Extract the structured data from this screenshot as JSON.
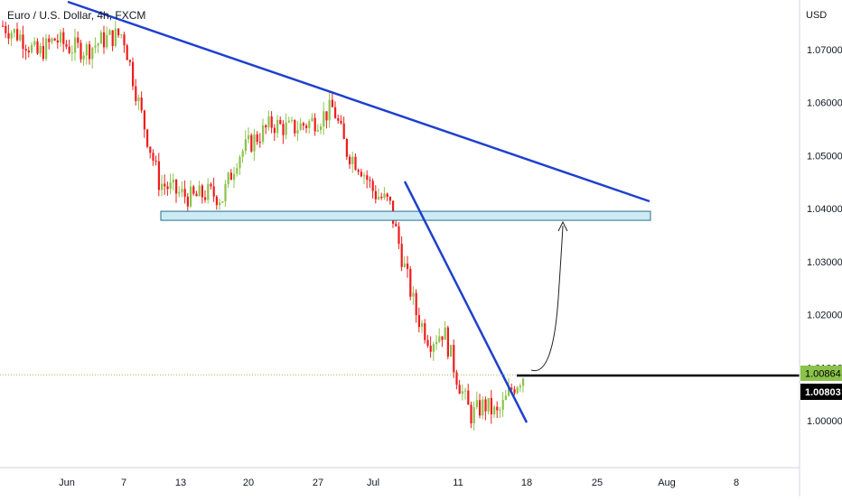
{
  "header": {
    "title": "Euro / U.S. Dollar, 4h, FXCM"
  },
  "price_axis": {
    "currency": "USD",
    "ticks": [
      "1.07000",
      "1.06000",
      "1.05000",
      "1.04000",
      "1.03000",
      "1.02000",
      "1.01000",
      "1.00000"
    ],
    "last_price_label": "1.00864",
    "crosshair_label": "1.00803"
  },
  "time_axis": {
    "ticks": [
      "Jun",
      "7",
      "13",
      "20",
      "27",
      "Jul",
      "11",
      "18",
      "25",
      "Aug",
      "8"
    ]
  },
  "colors": {
    "up_candle": "#8bc34a",
    "down_candle": "#ef1c1c",
    "trendline": "#1e40cf",
    "zone_fill": "#cdebf5",
    "zone_border": "#2a6f8c",
    "last_price_bg": "#8bc34a",
    "crosshair_bg": "#000000",
    "dotted_line": "#8bc34a"
  },
  "chart_data": {
    "type": "candlestick",
    "title": "Euro / U.S. Dollar, 4h, FXCM",
    "ylabel": "USD",
    "ylim": [
      0.9925,
      1.0795
    ],
    "x_ticks": [
      "Jun",
      "7",
      "13",
      "20",
      "27",
      "Jul",
      "11",
      "18",
      "25",
      "Aug",
      "8"
    ],
    "close_path": [
      [
        "May 30",
        1.0745
      ],
      [
        "Jun 1",
        1.0725
      ],
      [
        "Jun 2",
        1.069
      ],
      [
        "Jun 3",
        1.072
      ],
      [
        "Jun 6",
        1.0705
      ],
      [
        "Jun 7",
        1.07
      ],
      [
        "Jun 8",
        1.072
      ],
      [
        "Jun 9",
        1.073
      ],
      [
        "Jun 10",
        1.058
      ],
      [
        "Jun 13",
        1.045
      ],
      [
        "Jun 14",
        1.043
      ],
      [
        "Jun 15",
        1.042
      ],
      [
        "Jun 16",
        1.043
      ],
      [
        "Jun 17",
        1.042
      ],
      [
        "Jun 20",
        1.05
      ],
      [
        "Jun 21",
        1.053
      ],
      [
        "Jun 22",
        1.056
      ],
      [
        "Jun 23",
        1.055
      ],
      [
        "Jun 24",
        1.056
      ],
      [
        "Jun 27",
        1.057
      ],
      [
        "Jun 28",
        1.059
      ],
      [
        "Jun 29",
        1.051
      ],
      [
        "Jun 30",
        1.048
      ],
      [
        "Jul 1",
        1.043
      ],
      [
        "Jul 4",
        1.041
      ],
      [
        "Jul 5",
        1.03
      ],
      [
        "Jul 6",
        1.02
      ],
      [
        "Jul 7",
        1.015
      ],
      [
        "Jul 8",
        1.017
      ],
      [
        "Jul 11",
        1.008
      ],
      [
        "Jul 12",
        1.001
      ],
      [
        "Jul 13",
        1.003
      ],
      [
        "Jul 14",
        1.001
      ],
      [
        "Jul 15",
        1.006
      ],
      [
        "Jul 17",
        1.0086
      ]
    ],
    "last_price": 1.00864,
    "crosshair_price": 1.00803,
    "support_zone": [
      1.0378,
      1.0395
    ],
    "annotations": [
      "descending trendline",
      "steep descending trendline",
      "projected bounce arrow to support zone"
    ]
  }
}
